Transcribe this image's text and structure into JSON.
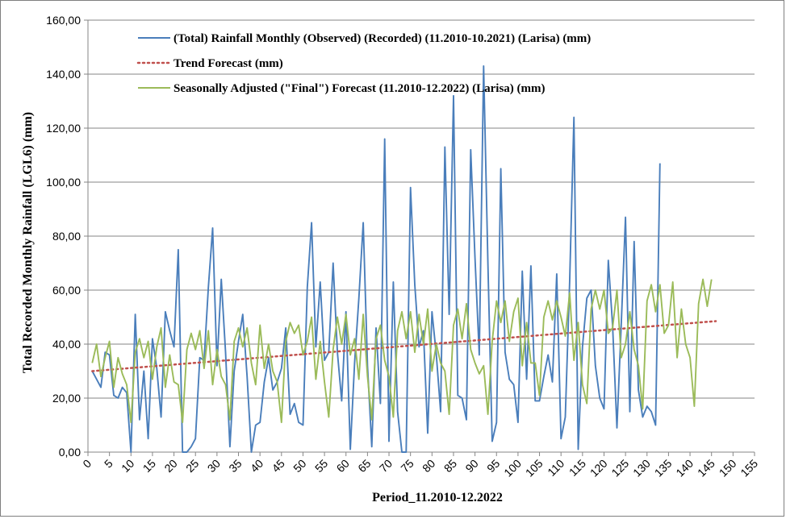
{
  "chart_data": {
    "type": "line",
    "title": "",
    "xlabel": "Period_11.2010-12.2022",
    "ylabel": "Total Recorded Monthly Rainfall (LGL6) (mm)",
    "xlim": [
      0,
      155
    ],
    "ylim": [
      0,
      160
    ],
    "x_ticks": [
      "0",
      "5",
      "10",
      "15",
      "20",
      "25",
      "30",
      "35",
      "40",
      "45",
      "50",
      "55",
      "60",
      "65",
      "70",
      "75",
      "80",
      "85",
      "90",
      "95",
      "100",
      "105",
      "110",
      "115",
      "120",
      "125",
      "130",
      "135",
      "140",
      "145",
      "150",
      "155"
    ],
    "y_ticks": [
      "0,00",
      "20,00",
      "40,00",
      "60,00",
      "80,00",
      "100,00",
      "120,00",
      "140,00",
      "160,00"
    ],
    "grid": "horizontal",
    "legend_position": "top",
    "colors": {
      "observed": "#4a7ebb",
      "trend": "#c0504d",
      "forecast": "#9bbb59",
      "grid": "#868686",
      "axis": "#868686"
    },
    "series": [
      {
        "name": "(Total) Rainfall Monthly (Observed) (Recorded) (11.2010-10.2021) (Larisa) (mm)",
        "key": "observed",
        "style": "solid",
        "x_start": 1,
        "values": [
          30,
          27,
          24,
          37,
          36,
          21,
          20,
          24,
          22,
          0,
          51,
          12,
          30,
          5,
          42,
          31,
          13,
          52,
          45,
          39,
          75,
          0,
          0,
          2,
          5,
          35,
          34,
          61,
          83,
          32,
          64,
          37,
          2,
          30,
          41,
          51,
          28,
          0,
          10,
          11,
          26,
          35,
          23,
          26,
          31,
          46,
          14,
          18,
          11,
          10,
          61,
          85,
          39,
          63,
          34,
          37,
          70,
          37,
          19,
          52,
          1,
          33,
          57,
          85,
          32,
          2,
          46,
          18,
          116,
          4,
          63,
          15,
          0,
          0,
          98,
          62,
          39,
          45,
          7,
          52,
          36,
          15,
          113,
          51,
          132,
          21,
          20,
          12,
          112,
          72,
          36,
          143,
          70,
          4,
          11,
          105,
          37,
          27,
          25,
          11,
          67,
          27,
          69,
          19,
          19,
          28,
          36,
          26,
          66,
          5,
          13,
          63,
          124,
          1,
          39,
          57,
          60,
          32,
          20,
          16,
          71,
          47,
          9,
          47,
          87,
          15,
          78,
          23,
          13,
          17,
          15,
          10,
          107
        ]
      },
      {
        "name": "Trend Forecast (mm)",
        "key": "trend",
        "style": "dotted",
        "x": [
          1,
          146
        ],
        "values": [
          30,
          48.5
        ]
      },
      {
        "name": "Seasonally Adjusted (\"Final\") Forecast (11.2010-12.2022) (Larisa) (mm)",
        "key": "forecast",
        "style": "solid",
        "x_start": 1,
        "values": [
          33,
          40,
          28,
          35,
          41,
          24,
          35,
          29,
          25,
          11,
          37,
          42,
          35,
          41,
          27,
          39,
          46,
          24,
          36,
          26,
          25,
          11,
          38,
          44,
          38,
          45,
          31,
          45,
          25,
          38,
          28,
          25,
          12,
          41,
          46,
          39,
          46,
          33,
          25,
          47,
          31,
          40,
          30,
          26,
          11,
          41,
          48,
          44,
          47,
          36,
          41,
          50,
          27,
          41,
          26,
          13,
          38,
          50,
          40,
          51,
          36,
          42,
          27,
          51,
          28,
          12,
          42,
          47,
          34,
          28,
          13,
          45,
          52,
          42,
          52,
          37,
          51,
          40,
          53,
          30,
          40,
          33,
          30,
          14,
          47,
          53,
          42,
          55,
          38,
          33,
          29,
          32,
          14,
          41,
          56,
          48,
          56,
          41,
          52,
          57,
          32,
          48,
          33,
          33,
          21,
          50,
          56,
          49,
          56,
          50,
          43,
          59,
          34,
          48,
          25,
          18,
          53,
          60,
          53,
          60,
          44,
          46,
          60,
          35,
          40,
          52,
          38,
          32,
          16,
          56,
          62,
          52,
          62,
          44,
          47,
          63,
          35,
          53,
          40,
          35,
          17,
          55,
          64,
          54,
          64
        ]
      }
    ]
  }
}
